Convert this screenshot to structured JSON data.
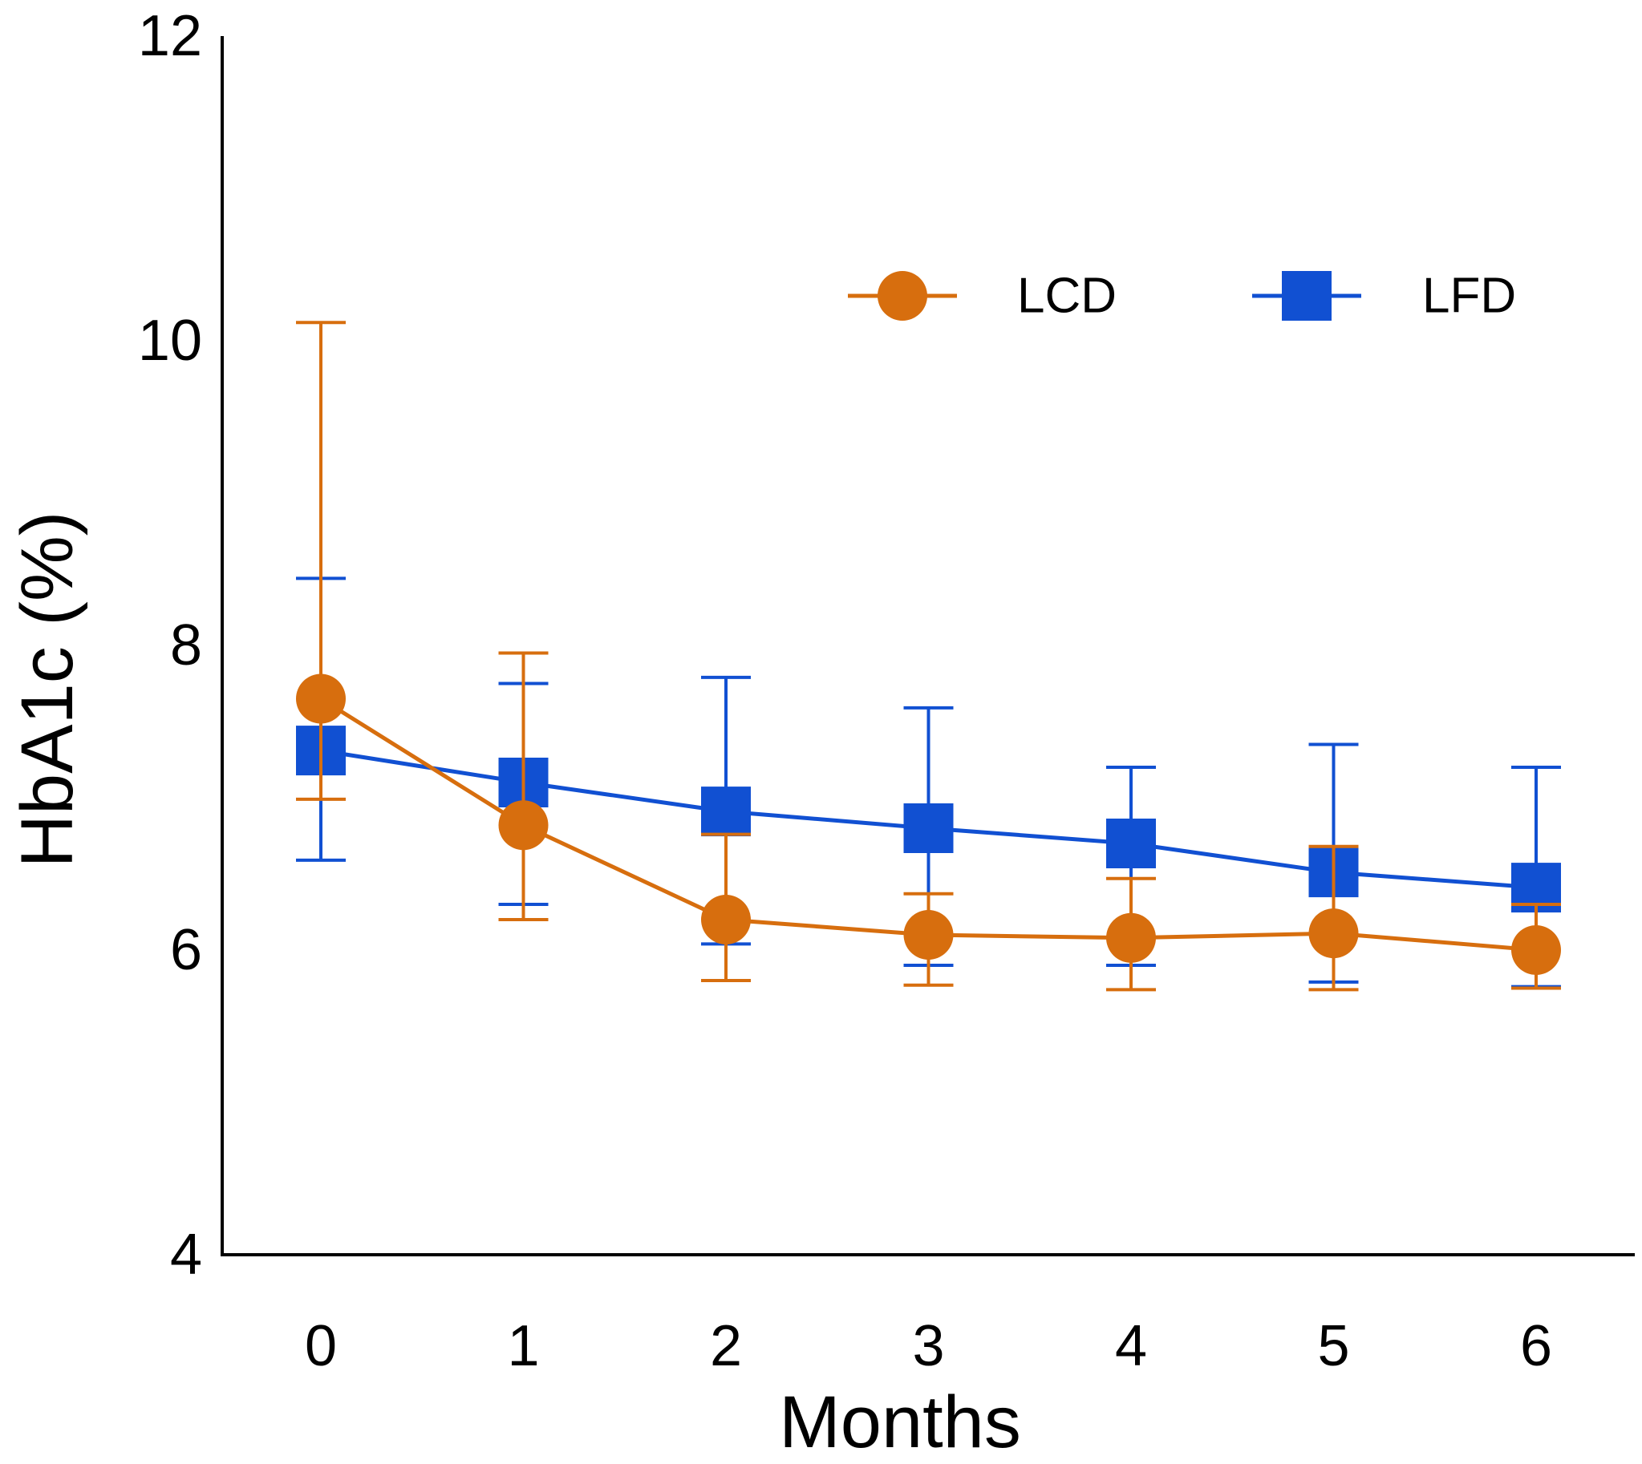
{
  "chart_data": {
    "type": "line",
    "title": "",
    "xlabel": "Months",
    "ylabel": "HbA1c (%)",
    "x": [
      0,
      1,
      2,
      3,
      4,
      5,
      6
    ],
    "x_tick_labels": [
      "0",
      "1",
      "2",
      "3",
      "4",
      "5",
      "6"
    ],
    "ylim": [
      4,
      12
    ],
    "y_ticks": [
      4,
      6,
      8,
      10,
      12
    ],
    "y_tick_labels": [
      "4",
      "6",
      "8",
      "10",
      "12"
    ],
    "grid": false,
    "legend_position": "top-right",
    "series": [
      {
        "name": "LCD",
        "marker": "circle",
        "color": "#D76E0E",
        "values": [
          7.65,
          6.82,
          6.2,
          6.1,
          6.08,
          6.11,
          6.0
        ],
        "error_low": [
          6.99,
          6.2,
          5.8,
          5.77,
          5.74,
          5.74,
          5.75
        ],
        "error_high": [
          10.12,
          7.95,
          6.76,
          6.37,
          6.47,
          6.68,
          6.3
        ]
      },
      {
        "name": "LFD",
        "marker": "square",
        "color": "#1150D2",
        "values": [
          7.31,
          7.1,
          6.91,
          6.8,
          6.7,
          6.51,
          6.41
        ],
        "error_low": [
          6.59,
          6.3,
          6.04,
          5.9,
          5.9,
          5.79,
          5.76
        ],
        "error_high": [
          8.44,
          7.75,
          7.79,
          7.59,
          7.2,
          7.35,
          7.2
        ]
      }
    ]
  }
}
